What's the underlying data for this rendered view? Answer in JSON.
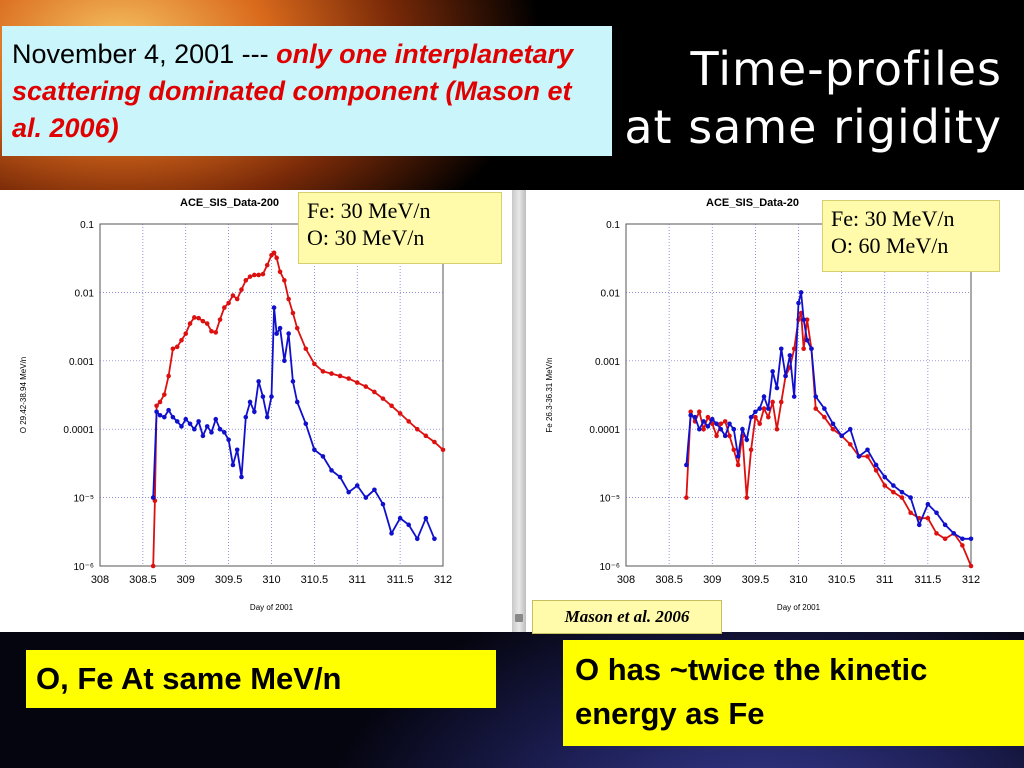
{
  "slide": {
    "title_line1": "Time-profiles",
    "title_line2": "at same rigidity",
    "note_prefix": "November 4, 2001 --- ",
    "note_emphasis": "only one interplanetary scattering dominated component (Mason et al. 2006)",
    "left_box": "O, Fe At same MeV/n",
    "right_box": "O has ~twice the kinetic energy as Fe",
    "citation": "Mason et al. 2006",
    "colors": {
      "note_bg": "#c9f5fb",
      "emphasis": "#e00000",
      "callout": "#ffff00",
      "inset": "#fffbaa",
      "fe": "#1010cc",
      "o": "#dd1010"
    }
  },
  "chart_data": [
    {
      "type": "line",
      "title": "ACE_SIS_Data-200",
      "xlabel": "Day of 2001",
      "ylabel": "O 29.42-38.94 MeV/n",
      "xlim": [
        308,
        312
      ],
      "ylim_log10": [
        -6,
        -1
      ],
      "yscale": "log",
      "x_ticks": [
        "308",
        "308.5",
        "309",
        "309.5",
        "310",
        "310.5",
        "311",
        "311.5",
        "312"
      ],
      "y_ticks": [
        "0.1",
        "0.01",
        "0.001",
        "0.0001",
        "10⁻⁵",
        "10⁻⁶"
      ],
      "grid": true,
      "inset": [
        "Fe: 30 MeV/n",
        "O: 30 MeV/n"
      ],
      "series": [
        {
          "name": "O",
          "color": "#dd1010",
          "x": [
            308.62,
            308.64,
            308.66,
            308.7,
            308.75,
            308.8,
            308.85,
            308.9,
            308.95,
            309.0,
            309.05,
            309.1,
            309.15,
            309.2,
            309.25,
            309.3,
            309.35,
            309.4,
            309.45,
            309.5,
            309.55,
            309.6,
            309.65,
            309.7,
            309.75,
            309.8,
            309.85,
            309.9,
            309.95,
            310.0,
            310.03,
            310.06,
            310.1,
            310.15,
            310.2,
            310.25,
            310.3,
            310.4,
            310.5,
            310.6,
            310.7,
            310.8,
            310.9,
            311.0,
            311.1,
            311.2,
            311.3,
            311.4,
            311.5,
            311.6,
            311.7,
            311.8,
            311.9,
            312.0
          ],
          "y": [
            1e-06,
            9e-06,
            0.00022,
            0.00025,
            0.00032,
            0.0006,
            0.0015,
            0.0016,
            0.002,
            0.0025,
            0.0035,
            0.0043,
            0.0042,
            0.0038,
            0.0035,
            0.0027,
            0.0026,
            0.004,
            0.006,
            0.007,
            0.009,
            0.008,
            0.011,
            0.015,
            0.017,
            0.018,
            0.018,
            0.0185,
            0.025,
            0.035,
            0.038,
            0.032,
            0.02,
            0.015,
            0.008,
            0.005,
            0.003,
            0.0015,
            0.0009,
            0.0007,
            0.00065,
            0.0006,
            0.00055,
            0.00048,
            0.00042,
            0.00035,
            0.00028,
            0.00022,
            0.00017,
            0.00013,
            0.0001,
            8e-05,
            6.5e-05,
            5e-05
          ]
        },
        {
          "name": "Fe",
          "color": "#1010cc",
          "x": [
            308.62,
            308.66,
            308.7,
            308.75,
            308.8,
            308.85,
            308.9,
            308.95,
            309.0,
            309.05,
            309.1,
            309.15,
            309.2,
            309.25,
            309.3,
            309.35,
            309.4,
            309.45,
            309.5,
            309.55,
            309.6,
            309.65,
            309.7,
            309.75,
            309.8,
            309.85,
            309.9,
            309.95,
            310.0,
            310.03,
            310.06,
            310.1,
            310.15,
            310.2,
            310.25,
            310.3,
            310.4,
            310.5,
            310.6,
            310.7,
            310.8,
            310.9,
            311.0,
            311.1,
            311.2,
            311.3,
            311.4,
            311.5,
            311.6,
            311.7,
            311.8,
            311.9
          ],
          "y": [
            1e-05,
            0.00018,
            0.00016,
            0.00015,
            0.00019,
            0.00015,
            0.00013,
            0.00011,
            0.00014,
            0.00012,
            0.0001,
            0.00013,
            8e-05,
            0.00011,
            9e-05,
            0.00014,
            0.0001,
            9e-05,
            7e-05,
            3e-05,
            5e-05,
            2e-05,
            0.00015,
            0.00025,
            0.00018,
            0.0005,
            0.0003,
            0.00015,
            0.0003,
            0.006,
            0.0025,
            0.003,
            0.001,
            0.0025,
            0.0005,
            0.00025,
            0.00012,
            5e-05,
            4e-05,
            2.5e-05,
            2e-05,
            1.2e-05,
            1.5e-05,
            1e-05,
            1.3e-05,
            8e-06,
            3e-06,
            5e-06,
            4e-06,
            2.5e-06,
            5e-06,
            2.5e-06
          ]
        }
      ]
    },
    {
      "type": "line",
      "title": "ACE_SIS_Data-20",
      "xlabel": "Day of 2001",
      "ylabel": "Fe 26.3-36.31 MeV/n",
      "xlim": [
        308,
        312
      ],
      "ylim_log10": [
        -6,
        -1
      ],
      "yscale": "log",
      "x_ticks": [
        "308",
        "308.5",
        "309",
        "309.5",
        "310",
        "310.5",
        "311",
        "311.5",
        "312"
      ],
      "y_ticks": [
        "0.1",
        "0.01",
        "0.001",
        "0.0001",
        "10⁻⁵",
        "10⁻⁶"
      ],
      "grid": true,
      "inset": [
        "Fe: 30 MeV/n",
        "O: 60 MeV/n"
      ],
      "series": [
        {
          "name": "O",
          "color": "#dd1010",
          "x": [
            308.7,
            308.75,
            308.8,
            308.85,
            308.9,
            308.95,
            309.0,
            309.05,
            309.1,
            309.15,
            309.2,
            309.25,
            309.3,
            309.35,
            309.4,
            309.45,
            309.5,
            309.55,
            309.6,
            309.65,
            309.7,
            309.75,
            309.8,
            309.85,
            309.9,
            309.95,
            310.0,
            310.03,
            310.06,
            310.1,
            310.15,
            310.2,
            310.3,
            310.4,
            310.5,
            310.6,
            310.7,
            310.8,
            310.9,
            311.0,
            311.1,
            311.2,
            311.3,
            311.4,
            311.5,
            311.6,
            311.7,
            311.8,
            311.9,
            312.0
          ],
          "y": [
            1e-05,
            0.00018,
            0.00013,
            0.00018,
            0.0001,
            0.00015,
            0.00012,
            8e-05,
            0.00012,
            0.00013,
            8e-05,
            5e-05,
            3e-05,
            8e-05,
            1e-05,
            5e-05,
            0.00015,
            0.00012,
            0.0002,
            0.00015,
            0.00025,
            0.0001,
            0.00025,
            0.0006,
            0.0008,
            0.0015,
            0.004,
            0.005,
            0.0015,
            0.004,
            0.0015,
            0.0002,
            0.00015,
            0.0001,
            8e-05,
            6e-05,
            4e-05,
            4e-05,
            2.5e-05,
            1.5e-05,
            1.2e-05,
            1e-05,
            6e-06,
            5e-06,
            5e-06,
            3e-06,
            2.5e-06,
            3e-06,
            2e-06,
            1e-06
          ]
        },
        {
          "name": "Fe",
          "color": "#1010cc",
          "x": [
            308.7,
            308.75,
            308.8,
            308.85,
            308.9,
            308.95,
            309.0,
            309.05,
            309.1,
            309.15,
            309.2,
            309.25,
            309.3,
            309.35,
            309.4,
            309.45,
            309.5,
            309.55,
            309.6,
            309.65,
            309.7,
            309.75,
            309.8,
            309.85,
            309.9,
            309.95,
            310.0,
            310.03,
            310.06,
            310.1,
            310.15,
            310.2,
            310.3,
            310.4,
            310.5,
            310.6,
            310.7,
            310.8,
            310.9,
            311.0,
            311.1,
            311.2,
            311.3,
            311.4,
            311.5,
            311.6,
            311.7,
            311.8,
            311.9,
            312.0
          ],
          "y": [
            3e-05,
            0.00016,
            0.00015,
            0.0001,
            0.00013,
            0.00011,
            0.00014,
            0.00012,
            0.0001,
            8e-05,
            0.00012,
            0.0001,
            4e-05,
            0.0001,
            7e-05,
            0.00015,
            0.00018,
            0.0002,
            0.0003,
            0.0002,
            0.0007,
            0.0004,
            0.0015,
            0.0006,
            0.0012,
            0.0003,
            0.007,
            0.01,
            0.004,
            0.002,
            0.0015,
            0.0003,
            0.0002,
            0.00012,
            8e-05,
            0.0001,
            4e-05,
            5e-05,
            3e-05,
            2e-05,
            1.5e-05,
            1.2e-05,
            1e-05,
            4e-06,
            8e-06,
            6e-06,
            4e-06,
            3e-06,
            2.5e-06,
            2.5e-06
          ]
        }
      ]
    }
  ]
}
